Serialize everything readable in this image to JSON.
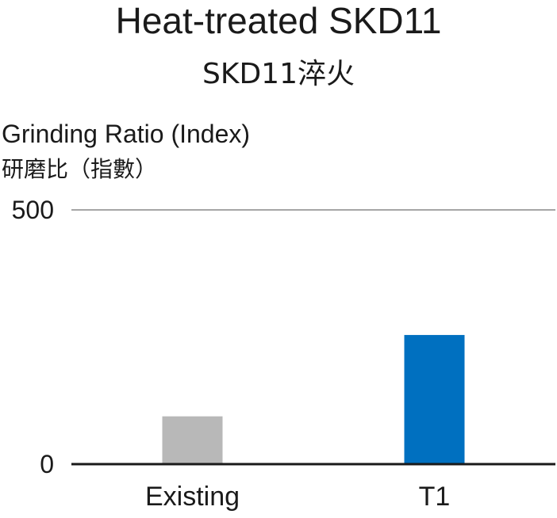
{
  "chart_data": {
    "type": "bar",
    "title": "Heat-treated SKD11",
    "subtitle": "SKD11淬火",
    "ylabel": "Grinding Ratio (Index)",
    "ylabel_secondary": "研磨比（指數）",
    "xlabel": "",
    "categories": [
      "Existing",
      "T1"
    ],
    "values": [
      94,
      254
    ],
    "ylim": [
      0,
      500
    ],
    "yticks": [
      0,
      500
    ],
    "grid": true,
    "colors": [
      "#b8b8b8",
      "#0070c0"
    ],
    "gridline_color": "#a6a6a6",
    "axis_color": "#1a1a1a"
  }
}
